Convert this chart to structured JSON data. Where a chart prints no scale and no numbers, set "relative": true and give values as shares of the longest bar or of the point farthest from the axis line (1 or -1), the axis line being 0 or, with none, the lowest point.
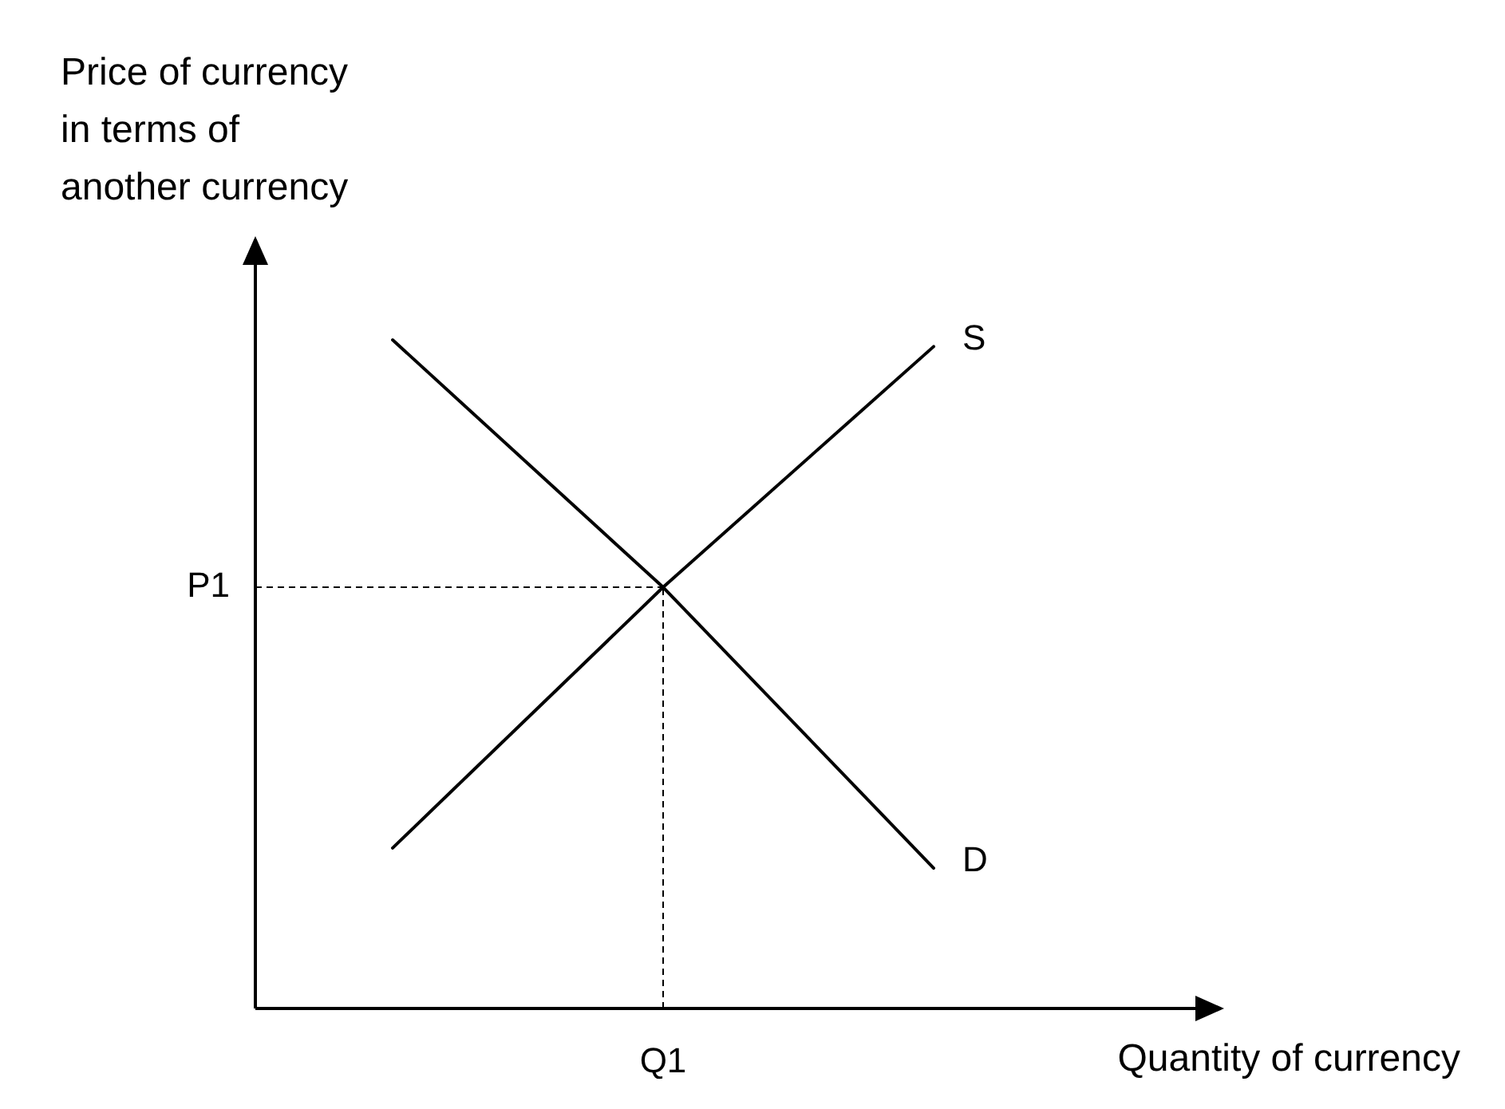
{
  "chart_data": {
    "type": "line",
    "relative": true,
    "ylabel": "Price of currency in terms of another currency",
    "xlabel": "Quantity of currency",
    "categories": [
      null,
      null,
      null
    ],
    "annotations": [
      "Q1"
    ],
    "series": [
      {
        "name": "S",
        "color": "#000000",
        "values": [
          0.24,
          0.63,
          0.99
        ]
      },
      {
        "name": "D",
        "color": "#000000",
        "values": [
          1,
          0.63,
          0.21
        ]
      }
    ],
    "ref_lines": [
      {
        "axis": "y",
        "value": 0.63,
        "label": "P1",
        "line_style": "dashed"
      }
    ],
    "marker": "none",
    "grid": false,
    "legend": false
  }
}
